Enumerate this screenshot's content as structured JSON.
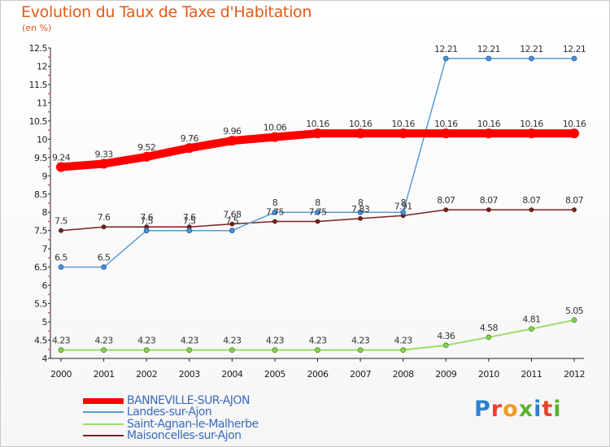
{
  "header": {
    "title": "Evolution du Taux de Taxe d'Habitation",
    "subtitle": "(en %)"
  },
  "chart_data": {
    "type": "line",
    "title": "Evolution du Taux de Taxe d'Habitation",
    "ylabel": "(en %)",
    "xlabel": "",
    "ylim": [
      4,
      12.5
    ],
    "ytick_step": 0.5,
    "grid": false,
    "legend_position": "bottom-left",
    "x": [
      2000,
      2001,
      2002,
      2003,
      2004,
      2005,
      2006,
      2007,
      2008,
      2009,
      2010,
      2011,
      2012
    ],
    "series": [
      {
        "name": "BANNEVILLE-SUR-AJON",
        "color": "#ff0000",
        "emphasis": "thick",
        "values": [
          9.24,
          9.33,
          9.52,
          9.76,
          9.96,
          10.06,
          10.16,
          10.16,
          10.16,
          10.16,
          10.16,
          10.16,
          10.16
        ],
        "labels": [
          "9.24",
          "9.33",
          "9.52",
          "9.76",
          "9.96",
          "10.06",
          "10.16",
          "10.16",
          "10.16",
          "10.16",
          "10.16",
          "10.16",
          "10.16"
        ]
      },
      {
        "name": "Landes-sur-Ajon",
        "color": "#5b9bd5",
        "values": [
          6.5,
          6.5,
          7.5,
          7.5,
          7.5,
          8,
          8,
          8,
          8,
          12.21,
          12.21,
          12.21,
          12.21
        ],
        "labels": [
          "6.5",
          "6.5",
          "7.5",
          "7.5",
          "7.5",
          "8",
          "8",
          "8",
          "8",
          "12.21",
          "12.21",
          "12.21",
          "12.21"
        ]
      },
      {
        "name": "Saint-Agnan-le-Malherbe",
        "color": "#99dd66",
        "values": [
          4.23,
          4.23,
          4.23,
          4.23,
          4.23,
          4.23,
          4.23,
          4.23,
          4.23,
          4.36,
          4.58,
          4.81,
          5.05
        ],
        "labels": [
          "4.23",
          "4.23",
          "4.23",
          "4.23",
          "4.23",
          "4.23",
          "4.23",
          "4.23",
          "4.23",
          "4.36",
          "4.58",
          "4.81",
          "5.05"
        ]
      },
      {
        "name": "Maisoncelles-sur-Ajon",
        "color": "#7b2020",
        "values": [
          7.5,
          7.6,
          7.6,
          7.6,
          7.68,
          7.75,
          7.75,
          7.83,
          7.91,
          8.07,
          8.07,
          8.07,
          8.07
        ],
        "labels": [
          "7.5",
          "7.6",
          "7.6",
          "7.6",
          "7.68",
          "7.75",
          "7.75",
          "7.83",
          "7.91",
          "8.07",
          "8.07",
          "8.07",
          "8.07"
        ]
      }
    ]
  },
  "legend": {
    "items": [
      {
        "label": "BANNEVILLE-SUR-AJON",
        "color": "#ff0000"
      },
      {
        "label": "Landes-sur-Ajon",
        "color": "#5b9bd5"
      },
      {
        "label": "Saint-Agnan-le-Malherbe",
        "color": "#99dd66"
      },
      {
        "label": "Maisoncelles-sur-Ajon",
        "color": "#7b2020"
      }
    ]
  },
  "logo": {
    "text": "Proxiti",
    "letter_colors": [
      "#2f7fd0",
      "#e8432d",
      "#f29a1a",
      "#5ab431",
      "#2f7fd0",
      "#e8432d",
      "#5ab431"
    ]
  },
  "colors": {
    "title": "#e05a1a",
    "axis": "#333333"
  }
}
